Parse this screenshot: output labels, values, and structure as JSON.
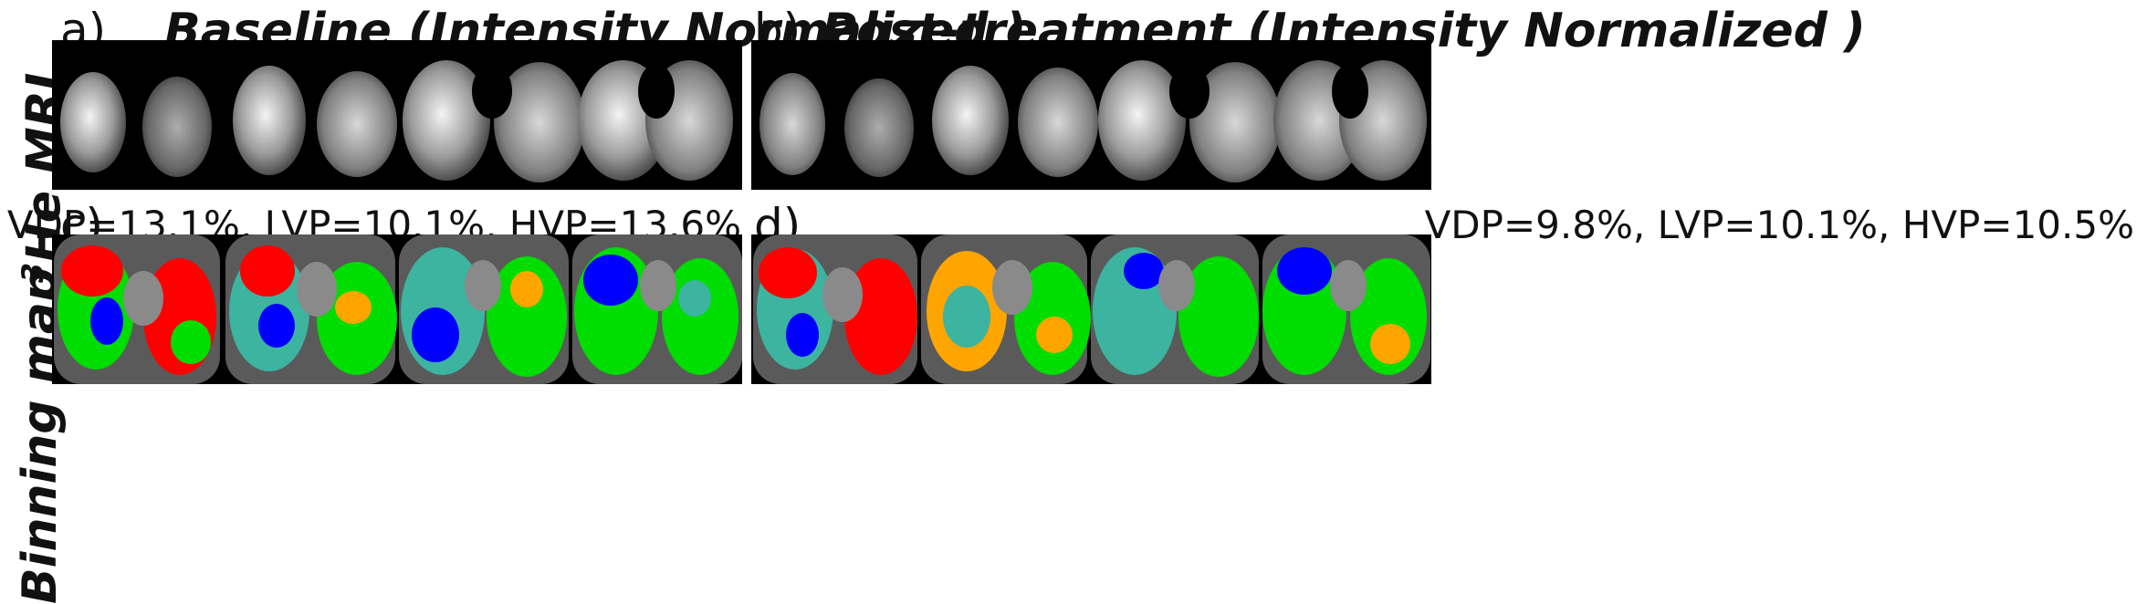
{
  "figure": {
    "row_labels": {
      "mri": {
        "superscript": "3",
        "text": "He MRI"
      },
      "binning": "Binning map"
    },
    "panels": {
      "a": {
        "letter": "a)",
        "title": "Baseline (Intensity Normalized )"
      },
      "b": {
        "letter": "b)",
        "title": "Post-treatment (Intensity Normalized )"
      },
      "c": {
        "letter": "c)",
        "stats": "VDP=13.1%, LVP=10.1%, HVP=13.6%"
      },
      "d": {
        "letter": "d)",
        "stats": "VDP=9.8%, LVP=10.1%, HVP=10.5%"
      }
    },
    "colors": {
      "defect": "#ff0000",
      "low": "#ffa500",
      "low_normal": "#3cb4a0",
      "normal": "#00dd00",
      "high": "#0000ff",
      "background": "#000000"
    }
  }
}
